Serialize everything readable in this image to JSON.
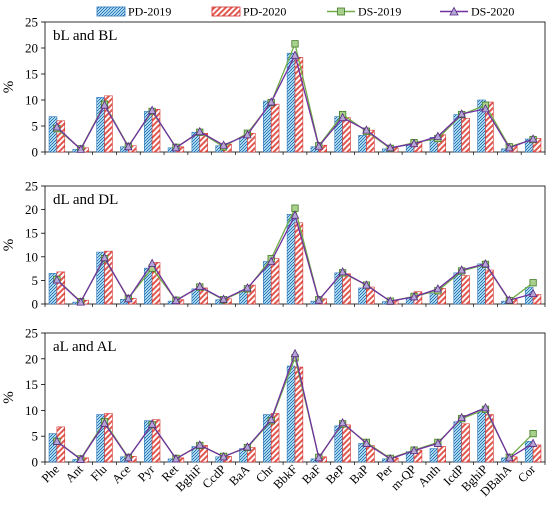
{
  "colors": {
    "pd2019_fill": "#a8d8f0",
    "pd2019_stroke": "#2e75b6",
    "pd2020_fill": "#f6c6c1",
    "pd2020_stroke": "#d0312d",
    "ds2019": "#70ad47",
    "ds2019_marker": "#a9d18e",
    "ds2020": "#7030a0",
    "ds2020_marker": "#b4a7d6"
  },
  "legend": [
    "PD-2019",
    "PD-2020",
    "DS-2019",
    "DS-2020"
  ],
  "ylabel": "%",
  "chart_data": [
    {
      "type": "bar",
      "title": "bL and BL",
      "ylabel": "%",
      "ylim": [
        0,
        25
      ],
      "yticks": [
        0,
        5,
        10,
        15,
        20,
        25
      ],
      "categories": [
        "Phe",
        "Ant",
        "Flu",
        "Ace",
        "Pyr",
        "Ret",
        "BghiF",
        "CcdP",
        "BaA",
        "Chr",
        "BbkF",
        "BaF",
        "BeP",
        "BaP",
        "Per",
        "m-QP",
        "Anth",
        "IcdP",
        "BghiP",
        "DBahA",
        "Cor"
      ],
      "series": [
        {
          "name": "PD-2019",
          "kind": "bar",
          "values": [
            6.8,
            0.5,
            10.5,
            1.0,
            7.8,
            0.8,
            3.8,
            1.2,
            2.8,
            9.8,
            19.0,
            1.0,
            6.8,
            3.2,
            0.6,
            1.3,
            2.8,
            7.2,
            10.0,
            0.6,
            2.5
          ]
        },
        {
          "name": "PD-2020",
          "kind": "bar",
          "values": [
            6.0,
            0.8,
            10.8,
            1.2,
            8.2,
            1.0,
            3.6,
            1.5,
            3.6,
            9.2,
            18.2,
            1.3,
            6.6,
            4.2,
            0.8,
            1.8,
            3.3,
            6.5,
            9.6,
            1.2,
            2.6
          ]
        },
        {
          "name": "DS-2019",
          "kind": "line",
          "values": [
            4.5,
            0.6,
            9.2,
            1.1,
            7.8,
            0.9,
            3.8,
            1.0,
            3.6,
            9.5,
            20.8,
            1.2,
            7.2,
            4.0,
            0.7,
            1.8,
            2.6,
            7.2,
            9.0,
            1.0,
            2.4
          ]
        },
        {
          "name": "DS-2020",
          "kind": "line",
          "values": [
            4.8,
            0.5,
            9.0,
            1.0,
            8.0,
            0.8,
            3.9,
            1.3,
            3.3,
            9.6,
            18.6,
            1.1,
            6.6,
            4.2,
            0.8,
            1.6,
            3.0,
            7.3,
            8.3,
            0.8,
            2.5
          ]
        }
      ]
    },
    {
      "type": "bar",
      "title": "dL and DL",
      "ylabel": "%",
      "ylim": [
        0,
        25
      ],
      "yticks": [
        0,
        5,
        10,
        15,
        20,
        25
      ],
      "categories": [
        "Phe",
        "Ant",
        "Flu",
        "Ace",
        "Pyr",
        "Ret",
        "BghiF",
        "CcdP",
        "BaA",
        "Chr",
        "BbkF",
        "BaF",
        "BeP",
        "BaP",
        "Per",
        "m-QP",
        "Anth",
        "IcdP",
        "BghiP",
        "DBahA",
        "Cor"
      ],
      "series": [
        {
          "name": "PD-2019",
          "kind": "bar",
          "values": [
            6.5,
            0.4,
            11.0,
            1.0,
            7.6,
            0.6,
            3.2,
            0.9,
            2.8,
            9.0,
            19.0,
            0.6,
            6.6,
            3.4,
            0.5,
            1.2,
            2.2,
            6.6,
            8.5,
            0.6,
            3.5
          ]
        },
        {
          "name": "PD-2020",
          "kind": "bar",
          "values": [
            6.8,
            0.8,
            11.2,
            1.2,
            8.8,
            0.9,
            3.4,
            1.1,
            4.0,
            9.6,
            17.2,
            1.1,
            6.4,
            3.6,
            0.8,
            2.6,
            3.3,
            6.0,
            7.2,
            1.0,
            2.0
          ]
        },
        {
          "name": "DS-2019",
          "kind": "line",
          "values": [
            5.2,
            0.5,
            9.6,
            1.2,
            7.6,
            0.8,
            3.6,
            0.9,
            3.2,
            9.6,
            20.3,
            0.9,
            6.6,
            4.0,
            0.6,
            1.6,
            2.8,
            7.0,
            8.4,
            0.7,
            4.5
          ]
        },
        {
          "name": "DS-2020",
          "kind": "line",
          "values": [
            5.1,
            0.4,
            9.8,
            1.1,
            8.6,
            0.7,
            3.7,
            1.0,
            3.4,
            9.0,
            18.8,
            0.8,
            6.8,
            4.0,
            0.6,
            1.5,
            3.2,
            7.2,
            8.5,
            0.8,
            2.2
          ]
        }
      ]
    },
    {
      "type": "bar",
      "title": "aL and AL",
      "ylabel": "%",
      "ylim": [
        0,
        25
      ],
      "yticks": [
        0,
        5,
        10,
        15,
        20,
        25
      ],
      "categories": [
        "Phe",
        "Ant",
        "Flu",
        "Ace",
        "Pyr",
        "Ret",
        "BghiF",
        "CcdP",
        "BaA",
        "Chr",
        "BbkF",
        "BaF",
        "BeP",
        "BaP",
        "Per",
        "m-QP",
        "Anth",
        "IcdP",
        "BghiP",
        "DBahA",
        "Cor"
      ],
      "series": [
        {
          "name": "PD-2019",
          "kind": "bar",
          "values": [
            5.5,
            0.5,
            9.2,
            1.0,
            8.0,
            0.6,
            3.0,
            1.0,
            2.6,
            9.2,
            18.6,
            0.6,
            7.0,
            3.6,
            0.6,
            2.0,
            2.6,
            7.8,
            10.0,
            0.8,
            4.0
          ]
        },
        {
          "name": "PD-2020",
          "kind": "bar",
          "values": [
            6.8,
            0.8,
            9.4,
            1.1,
            8.2,
            0.8,
            3.2,
            1.1,
            2.8,
            9.4,
            18.4,
            1.0,
            7.2,
            3.2,
            0.8,
            2.3,
            3.0,
            7.4,
            9.2,
            1.0,
            3.3
          ]
        },
        {
          "name": "DS-2019",
          "kind": "line",
          "values": [
            4.0,
            0.6,
            7.8,
            0.9,
            7.2,
            0.7,
            3.2,
            1.1,
            2.8,
            8.0,
            20.2,
            0.9,
            7.4,
            3.8,
            0.7,
            2.3,
            3.8,
            8.4,
            10.2,
            0.9,
            5.5
          ]
        },
        {
          "name": "DS-2020",
          "kind": "line",
          "values": [
            4.0,
            0.5,
            7.5,
            0.8,
            7.3,
            0.6,
            3.3,
            1.0,
            2.9,
            8.2,
            21.0,
            0.8,
            7.6,
            3.6,
            0.6,
            2.2,
            3.6,
            8.6,
            10.5,
            0.8,
            3.6
          ]
        }
      ]
    }
  ]
}
